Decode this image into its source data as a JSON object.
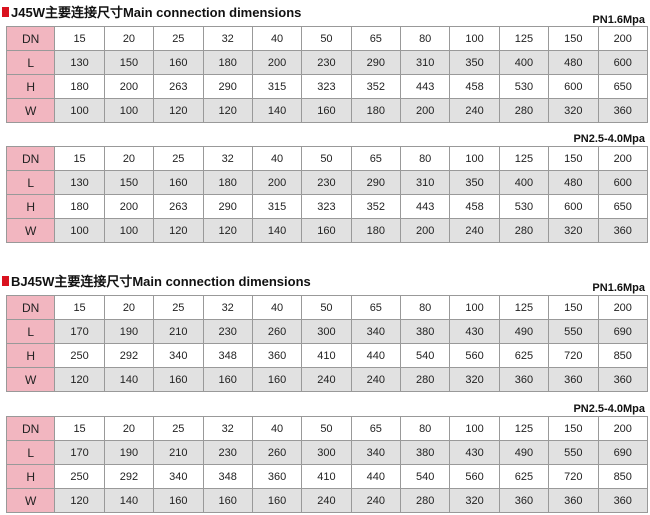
{
  "sections": [
    {
      "title": "J45W主要连接尺寸Main connection dimensions",
      "tables": [
        {
          "pressure": "PN1.6Mpa",
          "rows": [
            {
              "label": "DN",
              "values": [
                "15",
                "20",
                "25",
                "32",
                "40",
                "50",
                "65",
                "80",
                "100",
                "125",
                "150",
                "200"
              ]
            },
            {
              "label": "L",
              "values": [
                "130",
                "150",
                "160",
                "180",
                "200",
                "230",
                "290",
                "310",
                "350",
                "400",
                "480",
                "600"
              ]
            },
            {
              "label": "H",
              "values": [
                "180",
                "200",
                "263",
                "290",
                "315",
                "323",
                "352",
                "443",
                "458",
                "530",
                "600",
                "650"
              ]
            },
            {
              "label": "W",
              "values": [
                "100",
                "100",
                "120",
                "120",
                "140",
                "160",
                "180",
                "200",
                "240",
                "280",
                "320",
                "360"
              ]
            }
          ]
        },
        {
          "pressure": "PN2.5-4.0Mpa",
          "rows": [
            {
              "label": "DN",
              "values": [
                "15",
                "20",
                "25",
                "32",
                "40",
                "50",
                "65",
                "80",
                "100",
                "125",
                "150",
                "200"
              ]
            },
            {
              "label": "L",
              "values": [
                "130",
                "150",
                "160",
                "180",
                "200",
                "230",
                "290",
                "310",
                "350",
                "400",
                "480",
                "600"
              ]
            },
            {
              "label": "H",
              "values": [
                "180",
                "200",
                "263",
                "290",
                "315",
                "323",
                "352",
                "443",
                "458",
                "530",
                "600",
                "650"
              ]
            },
            {
              "label": "W",
              "values": [
                "100",
                "100",
                "120",
                "120",
                "140",
                "160",
                "180",
                "200",
                "240",
                "280",
                "320",
                "360"
              ]
            }
          ]
        }
      ]
    },
    {
      "title": "BJ45W主要连接尺寸Main connection dimensions",
      "tables": [
        {
          "pressure": "PN1.6Mpa",
          "rows": [
            {
              "label": "DN",
              "values": [
                "15",
                "20",
                "25",
                "32",
                "40",
                "50",
                "65",
                "80",
                "100",
                "125",
                "150",
                "200"
              ]
            },
            {
              "label": "L",
              "values": [
                "170",
                "190",
                "210",
                "230",
                "260",
                "300",
                "340",
                "380",
                "430",
                "490",
                "550",
                "690"
              ]
            },
            {
              "label": "H",
              "values": [
                "250",
                "292",
                "340",
                "348",
                "360",
                "410",
                "440",
                "540",
                "560",
                "625",
                "720",
                "850"
              ]
            },
            {
              "label": "W",
              "values": [
                "120",
                "140",
                "160",
                "160",
                "160",
                "240",
                "240",
                "280",
                "320",
                "360",
                "360",
                "360"
              ]
            }
          ]
        },
        {
          "pressure": "PN2.5-4.0Mpa",
          "rows": [
            {
              "label": "DN",
              "values": [
                "15",
                "20",
                "25",
                "32",
                "40",
                "50",
                "65",
                "80",
                "100",
                "125",
                "150",
                "200"
              ]
            },
            {
              "label": "L",
              "values": [
                "170",
                "190",
                "210",
                "230",
                "260",
                "300",
                "340",
                "380",
                "430",
                "490",
                "550",
                "690"
              ]
            },
            {
              "label": "H",
              "values": [
                "250",
                "292",
                "340",
                "348",
                "360",
                "410",
                "440",
                "540",
                "560",
                "625",
                "720",
                "850"
              ]
            },
            {
              "label": "W",
              "values": [
                "120",
                "140",
                "160",
                "160",
                "160",
                "240",
                "240",
                "280",
                "320",
                "360",
                "360",
                "360"
              ]
            }
          ]
        }
      ]
    }
  ]
}
